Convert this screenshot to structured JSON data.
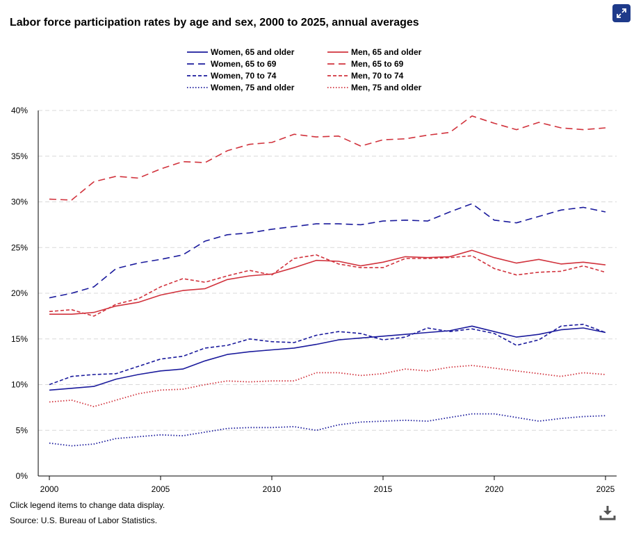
{
  "header": {
    "title": "Labor force participation rates by age and sex, 2000 to 2025, annual averages"
  },
  "toolbar": {
    "expand_icon": "expand-icon",
    "download_icon": "download-icon"
  },
  "footer": {
    "note": "Click legend items to change data display.",
    "source": "Source: U.S. Bureau of Labor Statistics."
  },
  "colors": {
    "women": "#1a1a9c",
    "men": "#d1323c",
    "grid": "#d8d8d8",
    "axis": "#000000",
    "button": "#1e3a8a"
  },
  "chart_data": {
    "type": "line",
    "title": "Labor force participation rates by age and sex, 2000 to 2025, annual averages",
    "xlabel": "",
    "ylabel": "",
    "x": [
      2000,
      2001,
      2002,
      2003,
      2004,
      2005,
      2006,
      2007,
      2008,
      2009,
      2010,
      2011,
      2012,
      2013,
      2014,
      2015,
      2016,
      2017,
      2018,
      2019,
      2020,
      2021,
      2022,
      2023,
      2024,
      2025
    ],
    "xticks": [
      2000,
      2005,
      2010,
      2015,
      2020,
      2025
    ],
    "xlim": [
      2000,
      2025
    ],
    "ylim": [
      0,
      40
    ],
    "yticks": [
      0,
      5,
      10,
      15,
      20,
      25,
      30,
      35,
      40
    ],
    "ytick_labels": [
      "0%",
      "5%",
      "10%",
      "15%",
      "20%",
      "25%",
      "30%",
      "35%",
      "40%"
    ],
    "grid": "horizontal dashed",
    "legend_position": "top",
    "series": [
      {
        "name": "Women, 65 and older",
        "color": "#1a1a9c",
        "style": "solid",
        "values": [
          9.4,
          9.6,
          9.8,
          10.6,
          11.1,
          11.5,
          11.7,
          12.6,
          13.3,
          13.6,
          13.8,
          14.0,
          14.4,
          14.9,
          15.1,
          15.3,
          15.5,
          15.7,
          15.9,
          16.4,
          15.8,
          15.2,
          15.5,
          16.0,
          16.2,
          15.7
        ]
      },
      {
        "name": "Men, 65 and older",
        "color": "#d1323c",
        "style": "solid",
        "values": [
          17.7,
          17.7,
          17.9,
          18.6,
          19.0,
          19.8,
          20.3,
          20.5,
          21.5,
          21.9,
          22.1,
          22.8,
          23.6,
          23.5,
          23.0,
          23.4,
          24.0,
          23.9,
          24.0,
          24.7,
          23.9,
          23.3,
          23.7,
          23.2,
          23.4,
          23.1
        ]
      },
      {
        "name": "Women, 65 to 69",
        "color": "#1a1a9c",
        "style": "longdash",
        "values": [
          19.5,
          20.0,
          20.7,
          22.7,
          23.3,
          23.7,
          24.2,
          25.7,
          26.4,
          26.6,
          27.0,
          27.3,
          27.6,
          27.6,
          27.5,
          27.9,
          28.0,
          27.9,
          28.9,
          29.8,
          28.0,
          27.7,
          28.4,
          29.1,
          29.4,
          28.9
        ]
      },
      {
        "name": "Men, 65 to 69",
        "color": "#d1323c",
        "style": "longdash",
        "values": [
          30.3,
          30.2,
          32.2,
          32.8,
          32.6,
          33.6,
          34.4,
          34.3,
          35.6,
          36.3,
          36.5,
          37.4,
          37.1,
          37.2,
          36.1,
          36.8,
          36.9,
          37.3,
          37.6,
          39.4,
          38.6,
          37.9,
          38.7,
          38.1,
          37.9,
          38.1
        ]
      },
      {
        "name": "Women, 70 to 74",
        "color": "#1a1a9c",
        "style": "shortdash",
        "values": [
          10.0,
          10.9,
          11.1,
          11.2,
          12.0,
          12.8,
          13.1,
          14.0,
          14.3,
          15.0,
          14.7,
          14.6,
          15.4,
          15.8,
          15.6,
          14.9,
          15.2,
          16.2,
          15.8,
          16.1,
          15.6,
          14.3,
          14.9,
          16.4,
          16.6,
          15.7
        ]
      },
      {
        "name": "Men, 70 to 74",
        "color": "#d1323c",
        "style": "shortdash",
        "values": [
          18.0,
          18.2,
          17.5,
          18.8,
          19.4,
          20.7,
          21.6,
          21.2,
          21.9,
          22.5,
          22.0,
          23.8,
          24.2,
          23.2,
          22.8,
          22.8,
          23.8,
          23.8,
          23.9,
          24.1,
          22.7,
          22.0,
          22.3,
          22.4,
          23.0,
          22.3
        ]
      },
      {
        "name": "Women, 75 and older",
        "color": "#1a1a9c",
        "style": "dotted",
        "values": [
          3.6,
          3.3,
          3.5,
          4.1,
          4.3,
          4.5,
          4.4,
          4.8,
          5.2,
          5.3,
          5.3,
          5.4,
          5.0,
          5.6,
          5.9,
          6.0,
          6.1,
          6.0,
          6.4,
          6.8,
          6.8,
          6.4,
          6.0,
          6.3,
          6.5,
          6.6
        ]
      },
      {
        "name": "Men, 75 and older",
        "color": "#d1323c",
        "style": "dotted",
        "values": [
          8.1,
          8.3,
          7.6,
          8.3,
          9.0,
          9.4,
          9.5,
          10.0,
          10.4,
          10.3,
          10.4,
          10.4,
          11.3,
          11.3,
          11.0,
          11.2,
          11.7,
          11.5,
          11.9,
          12.1,
          11.8,
          11.5,
          11.2,
          10.9,
          11.3,
          11.1
        ]
      }
    ]
  }
}
